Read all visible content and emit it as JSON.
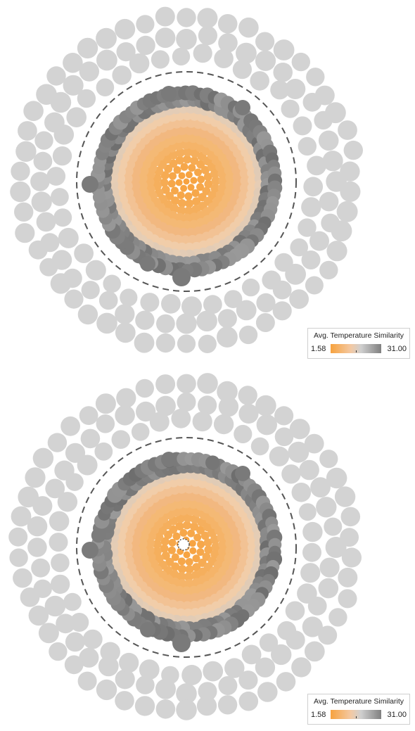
{
  "panels": [
    {
      "id": "top",
      "legend": {
        "title": "Avg. Temperature Similarity",
        "min": "1.58",
        "max": "31.00"
      },
      "center_marker": false
    },
    {
      "id": "bottom",
      "legend": {
        "title": "Avg. Temperature Similarity",
        "min": "1.58",
        "max": "31.00"
      },
      "center_marker": true
    }
  ],
  "colors": {
    "low": "#f7a23e",
    "mid_light": "#f1d2b3",
    "mid_grey": "#bdbdbd",
    "high": "#6e6e6e",
    "outer_ring": "#d3d3d3",
    "dashed_circle": "#555555"
  }
}
